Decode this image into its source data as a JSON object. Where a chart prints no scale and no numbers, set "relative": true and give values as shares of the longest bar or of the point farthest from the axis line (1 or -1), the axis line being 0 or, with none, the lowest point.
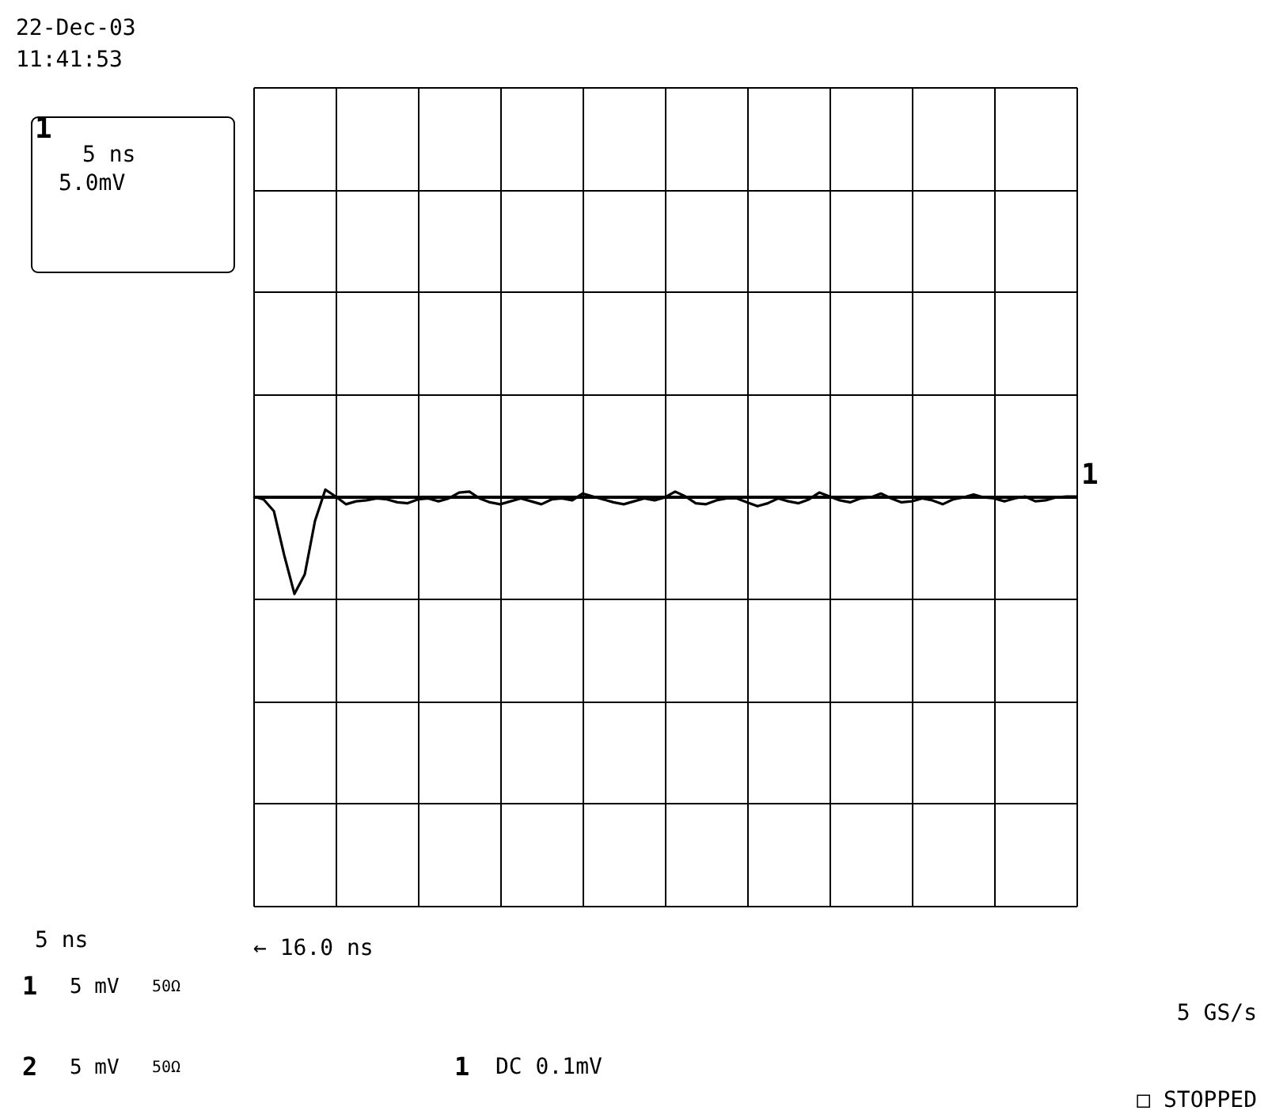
{
  "chart_data": {
    "type": "line",
    "relative": true,
    "grid": true,
    "tick_labels": false,
    "legend": false,
    "line_style": "solid",
    "marker": "none",
    "categories": [
      null,
      null,
      null,
      null,
      null,
      null,
      null,
      null,
      null,
      null,
      null,
      null,
      null,
      null,
      null,
      null,
      null,
      null,
      null,
      null,
      null,
      null,
      null,
      null,
      null,
      null,
      null,
      null,
      null,
      null,
      null,
      null,
      null,
      null,
      null,
      null,
      null,
      null,
      null,
      null,
      null,
      null,
      null,
      null,
      null,
      null,
      null,
      null,
      null,
      null,
      null,
      null,
      null,
      null,
      null,
      null,
      null,
      null,
      null,
      null,
      null,
      null,
      null,
      null,
      null,
      null,
      null,
      null,
      null,
      null,
      null,
      null,
      null,
      null,
      null,
      null,
      null,
      null,
      null,
      null,
      null
    ],
    "series": [
      {
        "name": "1",
        "color": "#000000",
        "values": [
          0,
          -0.03,
          -0.15,
          -0.6,
          -1,
          -0.8,
          -0.25,
          0.07,
          0.0,
          -0.08,
          -0.05,
          -0.04,
          -0.02,
          -0.03,
          -0.06,
          -0.07,
          -0.03,
          -0.02,
          -0.05,
          -0.02,
          0.04,
          0.05,
          -0.02,
          -0.06,
          -0.08,
          -0.05,
          -0.02,
          -0.05,
          -0.08,
          -0.03,
          -0.02,
          -0.04,
          0.03,
          0.0,
          -0.03,
          -0.06,
          -0.08,
          -0.05,
          -0.02,
          -0.04,
          -0.01,
          0.05,
          0.0,
          -0.07,
          -0.08,
          -0.04,
          -0.02,
          -0.02,
          -0.06,
          -0.1,
          -0.07,
          -0.02,
          -0.05,
          -0.07,
          -0.03,
          0.04,
          0.0,
          -0.04,
          -0.06,
          -0.02,
          -0.01,
          0.03,
          -0.02,
          -0.06,
          -0.05,
          -0.02,
          -0.04,
          -0.08,
          -0.03,
          -0.01,
          0.02,
          -0.01,
          -0.02,
          -0.05,
          -0.02,
          0.0,
          -0.05,
          -0.04,
          -0.01,
          0.0,
          0.0
        ]
      }
    ],
    "annotations": [
      "22-Dec-03",
      "11:41:53",
      "1",
      "5 ns",
      "5.0mV",
      "5 ns",
      "← 16.0 ns",
      "1",
      "5 mV",
      "50Ω",
      "2",
      "5 mV",
      "50Ω",
      "1",
      "DC 0.1mV",
      "5 GS/s",
      "□ STOPPED"
    ]
  }
}
